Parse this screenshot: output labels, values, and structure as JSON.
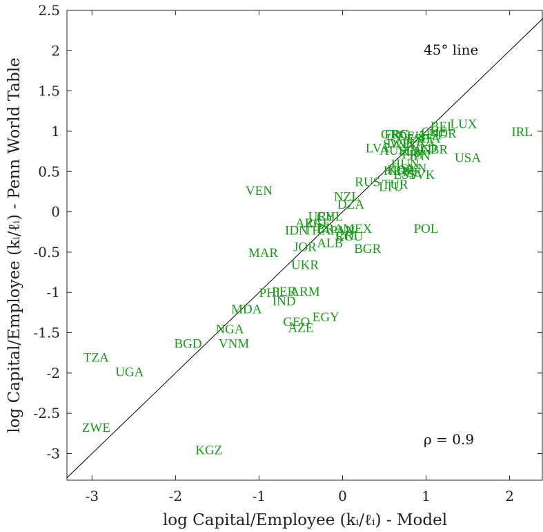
{
  "chart_data": {
    "type": "scatter",
    "title": "",
    "xlabel": "log Capital/Employee (kᵢ/ℓᵢ) - Model",
    "ylabel": "log Capital/Employee (kᵢ/ℓᵢ) - Penn World Table",
    "xlim": [
      -3.3,
      2.4
    ],
    "ylim": [
      -3.33,
      2.5
    ],
    "xticks": [
      -3,
      -2,
      -1,
      0,
      1,
      2
    ],
    "xtick_labels": [
      "-3",
      "-2",
      "-1",
      "0",
      "1",
      "2"
    ],
    "yticks": [
      -3,
      -2.5,
      -2,
      -1.5,
      -1,
      -0.5,
      0,
      0.5,
      1,
      1.5,
      2,
      2.5
    ],
    "ytick_labels": [
      "-3",
      "-2.5",
      "-2",
      "-1.5",
      "-1",
      "-0.5",
      "0",
      "0.5",
      "1",
      "1.5",
      "2",
      "2.5"
    ],
    "grid": false,
    "point_color": "#1a9a1a",
    "line_color": "#000000",
    "reference_line": {
      "label": "45° line",
      "slope": 1,
      "intercept": 0
    },
    "annotation": "ρ = 0.9",
    "points": [
      {
        "label": "IRL",
        "x": 2.15,
        "y": 1.0
      },
      {
        "label": "LUX",
        "x": 1.45,
        "y": 1.1
      },
      {
        "label": "BEL",
        "x": 1.2,
        "y": 1.07
      },
      {
        "label": "CHE",
        "x": 1.1,
        "y": 1.0
      },
      {
        "label": "NOR",
        "x": 1.2,
        "y": 0.98
      },
      {
        "label": "AUT",
        "x": 1.05,
        "y": 0.96
      },
      {
        "label": "ITA",
        "x": 1.05,
        "y": 0.92
      },
      {
        "label": "FRA",
        "x": 0.95,
        "y": 0.88
      },
      {
        "label": "DEU",
        "x": 0.82,
        "y": 0.95
      },
      {
        "label": "ESP",
        "x": 0.9,
        "y": 0.92
      },
      {
        "label": "FRC",
        "x": 0.65,
        "y": 0.97
      },
      {
        "label": "GRC",
        "x": 0.62,
        "y": 0.97
      },
      {
        "label": "DNK",
        "x": 0.7,
        "y": 0.86
      },
      {
        "label": "SWE",
        "x": 0.65,
        "y": 0.85
      },
      {
        "label": "FIN",
        "x": 0.8,
        "y": 0.75
      },
      {
        "label": "LVA",
        "x": 0.42,
        "y": 0.8
      },
      {
        "label": "AUS",
        "x": 0.6,
        "y": 0.77
      },
      {
        "label": "CAN",
        "x": 0.9,
        "y": 0.77
      },
      {
        "label": "GBR",
        "x": 1.1,
        "y": 0.78
      },
      {
        "label": "NLD",
        "x": 0.97,
        "y": 0.8
      },
      {
        "label": "PRT",
        "x": 0.85,
        "y": 0.72
      },
      {
        "label": "JPN",
        "x": 0.92,
        "y": 0.7
      },
      {
        "label": "USA",
        "x": 1.5,
        "y": 0.68
      },
      {
        "label": "HUN",
        "x": 0.75,
        "y": 0.6
      },
      {
        "label": "SVN",
        "x": 0.85,
        "y": 0.55
      },
      {
        "label": "KOR",
        "x": 0.7,
        "y": 0.53
      },
      {
        "label": "EST",
        "x": 0.75,
        "y": 0.47
      },
      {
        "label": "CZE",
        "x": 0.8,
        "y": 0.5
      },
      {
        "label": "SVK",
        "x": 0.95,
        "y": 0.47
      },
      {
        "label": "HRV",
        "x": 0.65,
        "y": 0.52
      },
      {
        "label": "LTU",
        "x": 0.58,
        "y": 0.32
      },
      {
        "label": "TUR",
        "x": 0.63,
        "y": 0.35
      },
      {
        "label": "RUS",
        "x": 0.3,
        "y": 0.38
      },
      {
        "label": "NZL",
        "x": 0.05,
        "y": 0.2
      },
      {
        "label": "DZA",
        "x": 0.1,
        "y": 0.1
      },
      {
        "label": "VEN",
        "x": -1.0,
        "y": 0.27
      },
      {
        "label": "POL",
        "x": 1.0,
        "y": -0.2
      },
      {
        "label": "CHL",
        "x": -0.15,
        "y": -0.05
      },
      {
        "label": "URY",
        "x": -0.25,
        "y": -0.05
      },
      {
        "label": "ZAF",
        "x": -0.3,
        "y": -0.13
      },
      {
        "label": "ARG",
        "x": -0.4,
        "y": -0.13
      },
      {
        "label": "MEX",
        "x": 0.18,
        "y": -0.2
      },
      {
        "label": "IDN",
        "x": -0.55,
        "y": -0.22
      },
      {
        "label": "THA",
        "x": -0.3,
        "y": -0.22
      },
      {
        "label": "BRA",
        "x": -0.15,
        "y": -0.2
      },
      {
        "label": "PAN",
        "x": 0.0,
        "y": -0.22
      },
      {
        "label": "CRI",
        "x": 0.05,
        "y": -0.28
      },
      {
        "label": "ROU",
        "x": 0.08,
        "y": -0.3
      },
      {
        "label": "JOR",
        "x": -0.45,
        "y": -0.43
      },
      {
        "label": "ALB",
        "x": -0.15,
        "y": -0.38
      },
      {
        "label": "BGR",
        "x": 0.3,
        "y": -0.45
      },
      {
        "label": "MAR",
        "x": -0.95,
        "y": -0.5
      },
      {
        "label": "UKR",
        "x": -0.45,
        "y": -0.65
      },
      {
        "label": "PHL",
        "x": -0.85,
        "y": -1.0
      },
      {
        "label": "PER",
        "x": -0.7,
        "y": -0.98
      },
      {
        "label": "ARM",
        "x": -0.45,
        "y": -0.98
      },
      {
        "label": "IND",
        "x": -0.7,
        "y": -1.1
      },
      {
        "label": "MDA",
        "x": -1.15,
        "y": -1.2
      },
      {
        "label": "EGY",
        "x": -0.2,
        "y": -1.3
      },
      {
        "label": "GEO",
        "x": -0.55,
        "y": -1.36
      },
      {
        "label": "AZE",
        "x": -0.5,
        "y": -1.43
      },
      {
        "label": "NGA",
        "x": -1.35,
        "y": -1.45
      },
      {
        "label": "VNM",
        "x": -1.3,
        "y": -1.63
      },
      {
        "label": "BGD",
        "x": -1.85,
        "y": -1.63
      },
      {
        "label": "TZA",
        "x": -2.95,
        "y": -1.8
      },
      {
        "label": "UGA",
        "x": -2.55,
        "y": -1.98
      },
      {
        "label": "ZWE",
        "x": -2.95,
        "y": -2.67
      },
      {
        "label": "KGZ",
        "x": -1.6,
        "y": -2.95
      }
    ]
  }
}
